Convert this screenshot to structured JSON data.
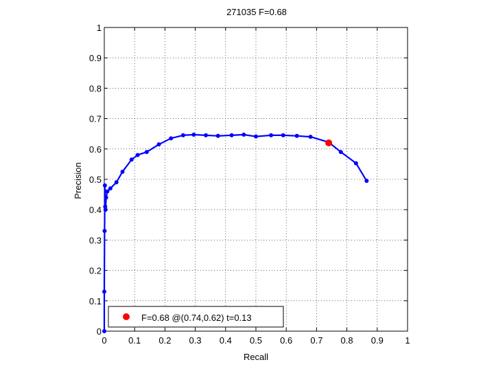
{
  "chart_data": {
    "type": "line",
    "title": "271035 F=0.68",
    "xlabel": "Recall",
    "ylabel": "Precision",
    "xlim": [
      0,
      1
    ],
    "ylim": [
      0,
      1
    ],
    "xticks": [
      "0",
      "0.1",
      "0.2",
      "0.3",
      "0.4",
      "0.5",
      "0.6",
      "0.7",
      "0.8",
      "0.9",
      "1"
    ],
    "yticks": [
      "0",
      "0.1",
      "0.2",
      "0.3",
      "0.4",
      "0.5",
      "0.6",
      "0.7",
      "0.8",
      "0.9",
      "1"
    ],
    "grid": true,
    "legend_position": "bottom-left",
    "series": [
      {
        "color": "#0000ff",
        "x": [
          0.0,
          0.0,
          0.001,
          0.002,
          0.003,
          0.004,
          0.006,
          0.01,
          0.02,
          0.04,
          0.06,
          0.09,
          0.11,
          0.14,
          0.18,
          0.22,
          0.26,
          0.295,
          0.335,
          0.375,
          0.42,
          0.46,
          0.5,
          0.55,
          0.59,
          0.635,
          0.68,
          0.74,
          0.78,
          0.83,
          0.865
        ],
        "y": [
          0.0,
          0.13,
          0.33,
          0.48,
          0.41,
          0.4,
          0.44,
          0.46,
          0.47,
          0.49,
          0.525,
          0.565,
          0.58,
          0.59,
          0.615,
          0.635,
          0.645,
          0.647,
          0.645,
          0.643,
          0.645,
          0.647,
          0.641,
          0.645,
          0.645,
          0.643,
          0.64,
          0.622,
          0.59,
          0.553,
          0.495
        ]
      }
    ],
    "highlight": {
      "x": 0.74,
      "y": 0.62,
      "color": "#ff0000"
    },
    "legend": {
      "text": "F=0.68 @(0.74,0.62) t=0.13"
    }
  }
}
